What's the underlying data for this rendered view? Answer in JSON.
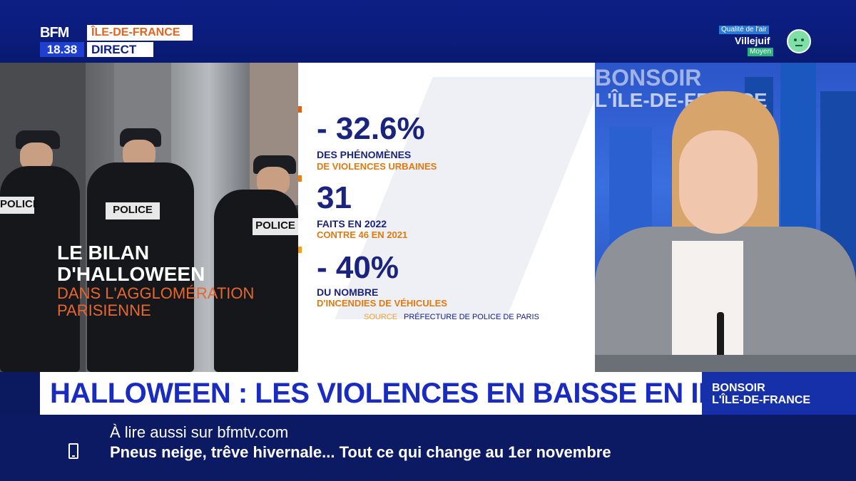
{
  "header": {
    "logo": "BFM",
    "clock": "18.38",
    "region": "ÎLE-DE-FRANCE",
    "live": "DIRECT",
    "air_quality": {
      "label": "Qualité de l'air",
      "city": "Villejuif",
      "level": "Moyen",
      "icon": "neutral-face-icon"
    }
  },
  "photo": {
    "patches": [
      "POLICE",
      "POLICE",
      "POLICE"
    ],
    "title_line1": "LE BILAN",
    "title_line2": "D'HALLOWEEN",
    "subtitle_line1": "DANS L'AGGLOMÉRATION",
    "subtitle_line2": "PARISIENNE"
  },
  "infographic": {
    "stats": [
      {
        "value": "- 32.6%",
        "label": "DES PHÉNOMÈNES",
        "sublabel": "DE VIOLENCES URBAINES",
        "marker_color": "#d9631c"
      },
      {
        "value": "31",
        "label": "FAITS EN 2022",
        "sublabel": "CONTRE 46 EN 2021",
        "marker_color": "#e8801c"
      },
      {
        "value": "- 40%",
        "label": "DU NOMBRE",
        "sublabel": "D'INCENDIES DE VÉHICULES",
        "marker_color": "#f0a020"
      }
    ],
    "source_key": "SOURCE",
    "source_value": "PRÉFECTURE DE POLICE DE PARIS"
  },
  "studio": {
    "backdrop_line1": "BONSOIR",
    "backdrop_line2": "L'ÎLE-DE-FRANCE"
  },
  "lower_third": {
    "headline": "HALLOWEEN : LES VIOLENCES EN BAISSE EN IDF",
    "show_line1": "BONSOIR",
    "show_line2": "L'ÎLE-DE-FRANCE"
  },
  "ticker": {
    "kicker": "À lire aussi sur bfmtv.com",
    "text": "Pneus neige, trêve hivernale... Tout ce qui change au 1er novembre",
    "icon": "phone-icon"
  },
  "colors": {
    "brand_blue": "#0c1f86",
    "accent_orange": "#e4641e",
    "headline_blue": "#1a2bbf"
  }
}
